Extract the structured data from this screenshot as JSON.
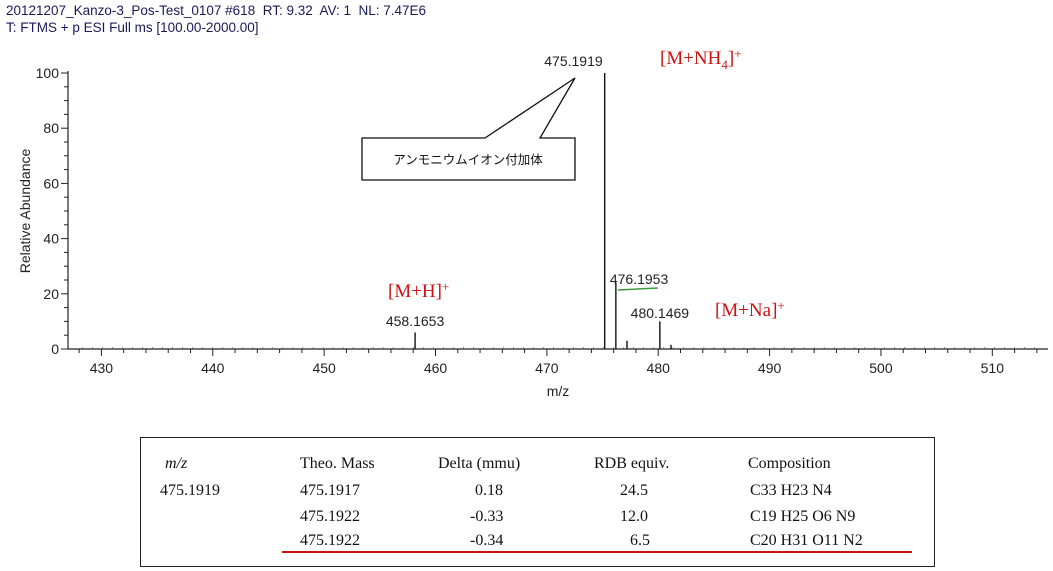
{
  "header": {
    "line1": "20121207_Kanzo-3_Pos-Test_0107 #618  RT: 9.32  AV: 1  NL: 7.47E6",
    "line2": "T: FTMS + p ESI Full ms [100.00-2000.00]"
  },
  "chart_data": {
    "type": "bar",
    "xlabel": "m/z",
    "ylabel": "Relative Abundance",
    "xlim": [
      427,
      515
    ],
    "ylim": [
      0,
      100
    ],
    "x_ticks": [
      430,
      440,
      450,
      460,
      470,
      480,
      490,
      500,
      510
    ],
    "y_ticks": [
      0,
      20,
      40,
      60,
      80,
      100
    ],
    "peaks": [
      {
        "mz": 458.1653,
        "intensity": 6,
        "label": "458.1653"
      },
      {
        "mz": 475.1919,
        "intensity": 100,
        "label": "475.1919"
      },
      {
        "mz": 476.1953,
        "intensity": 24,
        "label": "476.1953"
      },
      {
        "mz": 477.195,
        "intensity": 3
      },
      {
        "mz": 480.1469,
        "intensity": 10,
        "label": "480.1469"
      },
      {
        "mz": 481.15,
        "intensity": 1.5
      }
    ],
    "annotations": [
      {
        "text": "[M+NH4]+",
        "near_peak": 475.1919
      },
      {
        "text": "[M+H]+",
        "near_peak": 458.1653
      },
      {
        "text": "[M+Na]+",
        "near_peak": 480.1469
      }
    ],
    "callout": "アンモニウムイオン付加体",
    "annotation_color": "#cc1111"
  },
  "table": {
    "headers": [
      "m/z",
      "Theo. Mass",
      "Delta (mmu)",
      "RDB equiv.",
      "Composition"
    ],
    "mz": "475.1919",
    "rows": [
      [
        "475.1917",
        "0.18",
        "24.5",
        "C33 H23 N4"
      ],
      [
        "475.1922",
        "-0.33",
        "12.0",
        "C19 H25 O6 N9"
      ],
      [
        "475.1922",
        "-0.34",
        "6.5",
        "C20 H31 O11 N2"
      ]
    ],
    "highlight_row": 3,
    "highlight_color": "#cc1111"
  }
}
